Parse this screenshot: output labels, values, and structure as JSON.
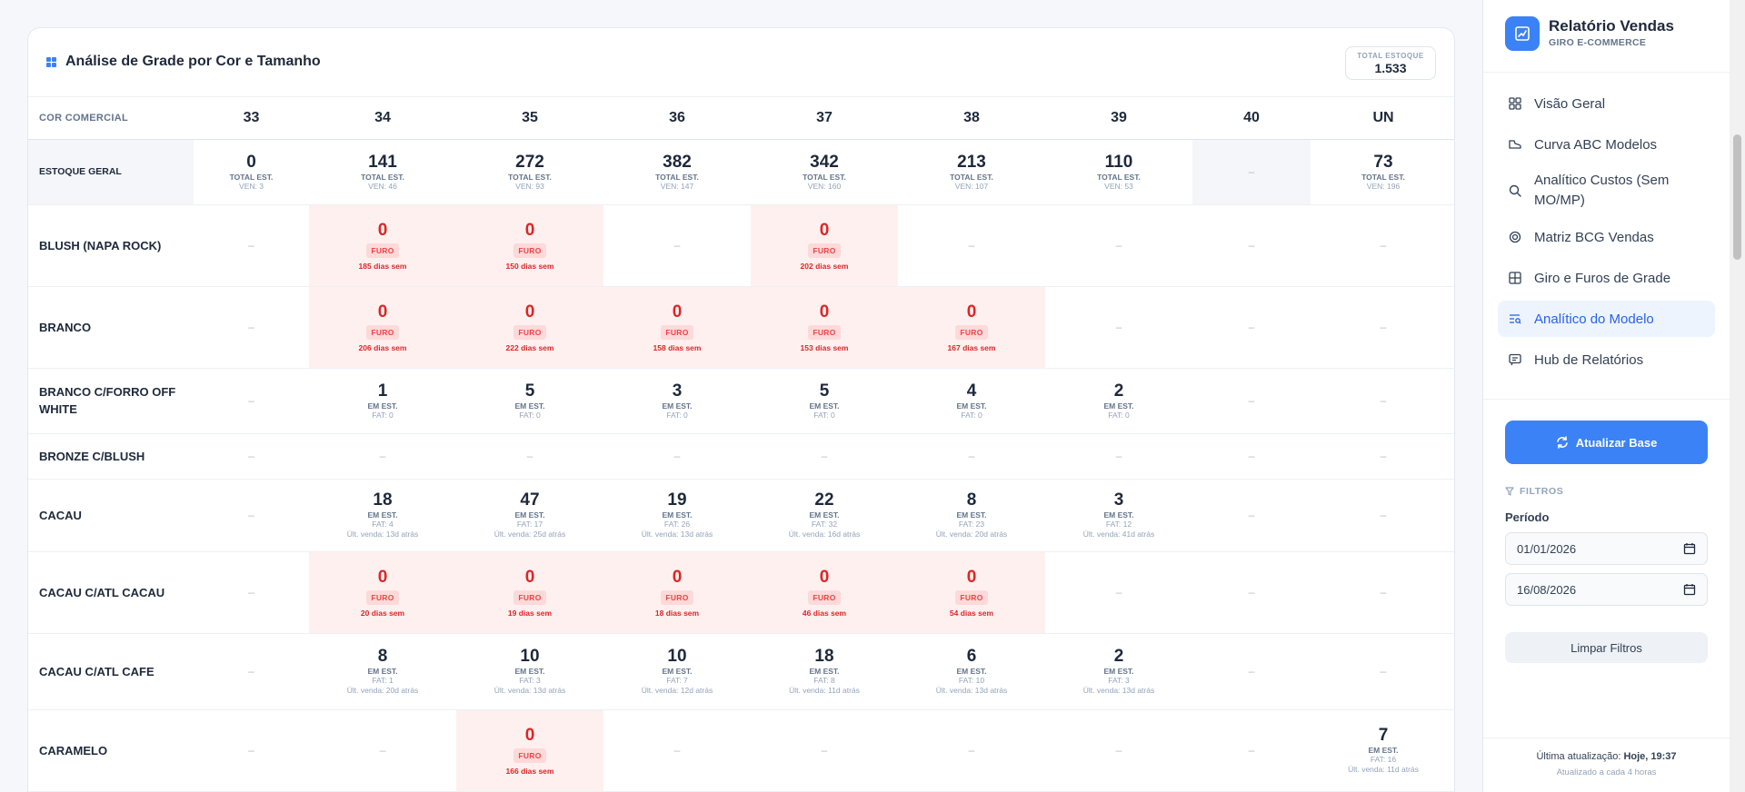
{
  "card": {
    "title": "Análise de Grade por Cor e Tamanho",
    "total_label": "TOTAL ESTOQUE",
    "total_value": "1.533"
  },
  "table": {
    "first_header": "COR COMERCIAL",
    "sizes": [
      "33",
      "34",
      "35",
      "36",
      "37",
      "38",
      "39",
      "40",
      "UN"
    ],
    "geral": {
      "label": "ESTOQUE GERAL",
      "cells": [
        {
          "num": "0",
          "a": "TOTAL EST.",
          "b": "VEN: 3"
        },
        {
          "num": "141",
          "a": "TOTAL EST.",
          "b": "VEN: 46"
        },
        {
          "num": "272",
          "a": "TOTAL EST.",
          "b": "VEN: 93"
        },
        {
          "num": "382",
          "a": "TOTAL EST.",
          "b": "VEN: 147"
        },
        {
          "num": "342",
          "a": "TOTAL EST.",
          "b": "VEN: 160"
        },
        {
          "num": "213",
          "a": "TOTAL EST.",
          "b": "VEN: 107"
        },
        {
          "num": "110",
          "a": "TOTAL EST.",
          "b": "VEN: 53"
        },
        {
          "dash": "–"
        },
        {
          "num": "73",
          "a": "TOTAL EST.",
          "b": "VEN: 196"
        }
      ]
    },
    "rows": [
      {
        "label": "BLUSH (NAPA ROCK)",
        "cells": [
          {
            "dash": "–"
          },
          {
            "furo": true,
            "num": "0",
            "badge": "FURO",
            "days": "185 dias sem"
          },
          {
            "furo": true,
            "num": "0",
            "badge": "FURO",
            "days": "150 dias sem"
          },
          {
            "dash": "–"
          },
          {
            "furo": true,
            "num": "0",
            "badge": "FURO",
            "days": "202 dias sem"
          },
          {
            "dash": "–"
          },
          {
            "dash": "–"
          },
          {
            "dash": "–"
          },
          {
            "dash": "–"
          }
        ]
      },
      {
        "label": "BRANCO",
        "cells": [
          {
            "dash": "–"
          },
          {
            "furo": true,
            "num": "0",
            "badge": "FURO",
            "days": "206 dias sem"
          },
          {
            "furo": true,
            "num": "0",
            "badge": "FURO",
            "days": "222 dias sem"
          },
          {
            "furo": true,
            "num": "0",
            "badge": "FURO",
            "days": "158 dias sem"
          },
          {
            "furo": true,
            "num": "0",
            "badge": "FURO",
            "days": "153 dias sem"
          },
          {
            "furo": true,
            "num": "0",
            "badge": "FURO",
            "days": "167 dias sem"
          },
          {
            "dash": "–"
          },
          {
            "dash": "–"
          },
          {
            "dash": "–"
          }
        ]
      },
      {
        "label": "BRANCO C/FORRO OFF WHITE",
        "cells": [
          {
            "dash": "–"
          },
          {
            "num": "1",
            "a": "EM EST.",
            "b": "FAT: 0"
          },
          {
            "num": "5",
            "a": "EM EST.",
            "b": "FAT: 0"
          },
          {
            "num": "3",
            "a": "EM EST.",
            "b": "FAT: 0"
          },
          {
            "num": "5",
            "a": "EM EST.",
            "b": "FAT: 0"
          },
          {
            "num": "4",
            "a": "EM EST.",
            "b": "FAT: 0"
          },
          {
            "num": "2",
            "a": "EM EST.",
            "b": "FAT: 0"
          },
          {
            "dash": "–"
          },
          {
            "dash": "–"
          }
        ]
      },
      {
        "label": "BRONZE C/BLUSH",
        "cells": [
          {
            "dash": "–"
          },
          {
            "dash": "–"
          },
          {
            "dash": "–"
          },
          {
            "dash": "–"
          },
          {
            "dash": "–"
          },
          {
            "dash": "–"
          },
          {
            "dash": "–"
          },
          {
            "dash": "–"
          },
          {
            "dash": "–"
          }
        ]
      },
      {
        "label": "CACAU",
        "cells": [
          {
            "dash": "–"
          },
          {
            "num": "18",
            "a": "EM EST.",
            "b": "FAT: 4",
            "c": "Últ. venda: 13d atrás"
          },
          {
            "num": "47",
            "a": "EM EST.",
            "b": "FAT: 17",
            "c": "Últ. venda: 25d atrás"
          },
          {
            "num": "19",
            "a": "EM EST.",
            "b": "FAT: 26",
            "c": "Últ. venda: 13d atrás"
          },
          {
            "num": "22",
            "a": "EM EST.",
            "b": "FAT: 32",
            "c": "Últ. venda: 16d atrás"
          },
          {
            "num": "8",
            "a": "EM EST.",
            "b": "FAT: 23",
            "c": "Últ. venda: 20d atrás"
          },
          {
            "num": "3",
            "a": "EM EST.",
            "b": "FAT: 12",
            "c": "Últ. venda: 41d atrás"
          },
          {
            "dash": "–"
          },
          {
            "dash": "–"
          }
        ]
      },
      {
        "label": "CACAU C/ATL CACAU",
        "cells": [
          {
            "dash": "–"
          },
          {
            "furo": true,
            "num": "0",
            "badge": "FURO",
            "days": "20 dias sem"
          },
          {
            "furo": true,
            "num": "0",
            "badge": "FURO",
            "days": "19 dias sem"
          },
          {
            "furo": true,
            "num": "0",
            "badge": "FURO",
            "days": "18 dias sem"
          },
          {
            "furo": true,
            "num": "0",
            "badge": "FURO",
            "days": "46 dias sem"
          },
          {
            "furo": true,
            "num": "0",
            "badge": "FURO",
            "days": "54 dias sem"
          },
          {
            "dash": "–"
          },
          {
            "dash": "–"
          },
          {
            "dash": "–"
          }
        ]
      },
      {
        "label": "CACAU C/ATL CAFE",
        "cells": [
          {
            "dash": "–"
          },
          {
            "num": "8",
            "a": "EM EST.",
            "b": "FAT: 1",
            "c": "Últ. venda: 20d atrás"
          },
          {
            "num": "10",
            "a": "EM EST.",
            "b": "FAT: 3",
            "c": "Últ. venda: 13d atrás"
          },
          {
            "num": "10",
            "a": "EM EST.",
            "b": "FAT: 7",
            "c": "Últ. venda: 12d atrás"
          },
          {
            "num": "18",
            "a": "EM EST.",
            "b": "FAT: 8",
            "c": "Últ. venda: 11d atrás"
          },
          {
            "num": "6",
            "a": "EM EST.",
            "b": "FAT: 10",
            "c": "Últ. venda: 13d atrás"
          },
          {
            "num": "2",
            "a": "EM EST.",
            "b": "FAT: 3",
            "c": "Últ. venda: 13d atrás"
          },
          {
            "dash": "–"
          },
          {
            "dash": "–"
          }
        ]
      },
      {
        "label": "CARAMELO",
        "cells": [
          {
            "dash": "–"
          },
          {
            "dash": "–"
          },
          {
            "furo": true,
            "num": "0",
            "badge": "FURO",
            "days": "166 dias sem"
          },
          {
            "dash": "–"
          },
          {
            "dash": "–"
          },
          {
            "dash": "–"
          },
          {
            "dash": "–"
          },
          {
            "dash": "–"
          },
          {
            "num": "7",
            "a": "EM EST.",
            "b": "FAT: 16",
            "c": "Últ. venda: 11d atrás"
          }
        ]
      }
    ]
  },
  "sidebar": {
    "title": "Relatório Vendas",
    "subtitle": "GIRO E-COMMERCE",
    "nav": [
      {
        "label": "Visão Geral",
        "icon": "dashboard-icon"
      },
      {
        "label": "Curva ABC Modelos",
        "icon": "shoe-icon"
      },
      {
        "label": "Analítico Custos (Sem MO/MP)",
        "icon": "search-icon"
      },
      {
        "label": "Matriz BCG Vendas",
        "icon": "target-icon"
      },
      {
        "label": "Giro e Furos de Grade",
        "icon": "grid-icon"
      },
      {
        "label": "Analítico do Modelo",
        "icon": "list-search-icon",
        "active": true
      },
      {
        "label": "Hub de Relatórios",
        "icon": "report-icon"
      }
    ],
    "update_button": "Atualizar Base",
    "filters_label": "FILTROS",
    "period_label": "Período",
    "date_from": "01/01/2026",
    "date_to": "16/08/2026",
    "clear_button": "Limpar Filtros",
    "footer_prefix": "Última atualização:",
    "footer_time": "Hoje, 19:37",
    "footer_note": "Atualizado a cada 4 horas"
  },
  "colors": {
    "accent": "#3b82f6",
    "furo_bg": "#fff0f0",
    "furo_text": "#dc2626"
  }
}
